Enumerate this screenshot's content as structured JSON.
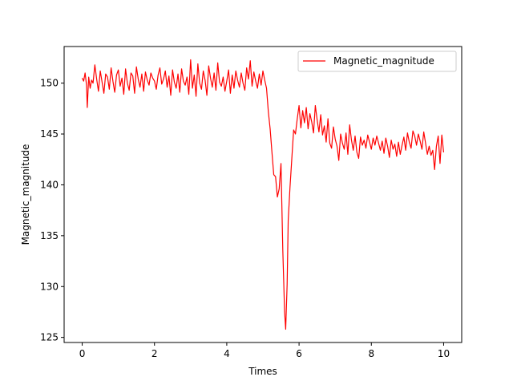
{
  "chart_data": {
    "type": "line",
    "title": "",
    "xlabel": "Times",
    "ylabel": "Magnetic_magnitude",
    "xlim": [
      -0.5,
      10.5
    ],
    "ylim": [
      124.5,
      153.6
    ],
    "xticks": [
      0,
      2,
      4,
      6,
      8,
      10
    ],
    "yticks": [
      125,
      130,
      135,
      140,
      145,
      150
    ],
    "grid": false,
    "legend": {
      "position": "top-right"
    },
    "series": [
      {
        "name": "Magnetic_magnitude",
        "color": "#ff0000",
        "x": [
          0,
          0.04,
          0.08,
          0.12,
          0.14,
          0.18,
          0.22,
          0.26,
          0.3,
          0.35,
          0.4,
          0.45,
          0.5,
          0.55,
          0.6,
          0.65,
          0.7,
          0.75,
          0.8,
          0.85,
          0.9,
          0.95,
          1.0,
          1.05,
          1.1,
          1.15,
          1.2,
          1.25,
          1.3,
          1.35,
          1.4,
          1.45,
          1.5,
          1.55,
          1.6,
          1.65,
          1.7,
          1.75,
          1.8,
          1.85,
          1.9,
          1.95,
          2.0,
          2.05,
          2.1,
          2.15,
          2.2,
          2.25,
          2.3,
          2.35,
          2.4,
          2.45,
          2.5,
          2.55,
          2.6,
          2.65,
          2.7,
          2.75,
          2.8,
          2.85,
          2.9,
          2.95,
          3.0,
          3.05,
          3.1,
          3.15,
          3.2,
          3.25,
          3.3,
          3.35,
          3.4,
          3.45,
          3.5,
          3.55,
          3.6,
          3.65,
          3.7,
          3.75,
          3.8,
          3.85,
          3.9,
          3.95,
          4.0,
          4.05,
          4.1,
          4.15,
          4.2,
          4.25,
          4.3,
          4.35,
          4.4,
          4.45,
          4.5,
          4.55,
          4.6,
          4.65,
          4.7,
          4.75,
          4.8,
          4.85,
          4.9,
          4.95,
          5.0,
          5.05,
          5.1,
          5.15,
          5.2,
          5.25,
          5.3,
          5.35,
          5.4,
          5.45,
          5.5,
          5.55,
          5.6,
          5.63,
          5.67,
          5.7,
          5.75,
          5.8,
          5.85,
          5.9,
          5.95,
          6.0,
          6.05,
          6.1,
          6.15,
          6.2,
          6.25,
          6.3,
          6.35,
          6.4,
          6.45,
          6.5,
          6.55,
          6.6,
          6.65,
          6.7,
          6.75,
          6.8,
          6.85,
          6.9,
          6.95,
          7.0,
          7.05,
          7.1,
          7.15,
          7.2,
          7.25,
          7.3,
          7.35,
          7.4,
          7.45,
          7.5,
          7.55,
          7.6,
          7.65,
          7.7,
          7.75,
          7.8,
          7.85,
          7.9,
          7.95,
          8.0,
          8.05,
          8.1,
          8.15,
          8.2,
          8.25,
          8.3,
          8.35,
          8.4,
          8.45,
          8.5,
          8.55,
          8.6,
          8.65,
          8.7,
          8.75,
          8.8,
          8.85,
          8.9,
          8.95,
          9.0,
          9.05,
          9.1,
          9.15,
          9.2,
          9.25,
          9.3,
          9.35,
          9.4,
          9.45,
          9.5,
          9.55,
          9.6,
          9.65,
          9.7,
          9.75,
          9.8,
          9.85,
          9.9,
          9.95,
          10.0
        ],
        "y": [
          150.5,
          150.2,
          151.0,
          149.8,
          147.6,
          150.6,
          149.5,
          150.3,
          150.0,
          151.8,
          150.4,
          149.2,
          151.2,
          150.1,
          149.0,
          150.9,
          150.6,
          149.4,
          151.5,
          150.2,
          149.1,
          150.8,
          151.3,
          149.7,
          150.5,
          148.9,
          151.4,
          150.0,
          149.3,
          151.0,
          150.7,
          149.0,
          151.6,
          150.4,
          149.6,
          150.9,
          149.2,
          151.1,
          150.3,
          149.8,
          151.0,
          150.5,
          150.2,
          149.4,
          150.8,
          151.5,
          149.9,
          150.4,
          151.2,
          149.6,
          150.7,
          148.8,
          151.3,
          150.1,
          149.5,
          150.9,
          149.1,
          151.4,
          150.2,
          149.8,
          150.6,
          148.9,
          152.3,
          149.5,
          150.8,
          148.7,
          151.9,
          150.0,
          149.4,
          151.2,
          150.3,
          148.8,
          151.7,
          150.5,
          149.6,
          151.0,
          149.3,
          152.0,
          150.1,
          149.7,
          150.6,
          149.2,
          150.2,
          151.3,
          149.0,
          150.8,
          149.5,
          151.2,
          150.3,
          149.6,
          151.0,
          150.0,
          149.3,
          151.5,
          150.4,
          152.2,
          149.7,
          151.1,
          150.2,
          149.5,
          150.9,
          149.8,
          151.2,
          150.3,
          149.5,
          147.2,
          145.5,
          143.2,
          141.0,
          140.8,
          138.8,
          139.6,
          142.1,
          133.6,
          127.5,
          125.8,
          130.2,
          136.5,
          139.8,
          142.6,
          145.4,
          145.0,
          146.5,
          147.8,
          145.6,
          147.3,
          146.1,
          147.6,
          145.5,
          147.0,
          146.2,
          145.1,
          147.8,
          146.4,
          145.2,
          146.9,
          144.9,
          145.8,
          144.2,
          146.5,
          144.1,
          143.6,
          145.7,
          144.5,
          143.8,
          142.4,
          145.0,
          144.1,
          143.5,
          145.1,
          143.0,
          145.9,
          144.4,
          143.4,
          144.8,
          143.2,
          142.6,
          144.7,
          143.9,
          144.4,
          143.6,
          144.9,
          144.2,
          143.5,
          144.6,
          143.9,
          144.8,
          144.1,
          143.4,
          144.3,
          143.1,
          144.6,
          143.8,
          142.7,
          144.4,
          143.5,
          144.0,
          142.8,
          144.2,
          143.0,
          143.9,
          144.7,
          143.4,
          145.1,
          144.2,
          143.6,
          145.3,
          144.8,
          143.9,
          145.0,
          144.3,
          143.5,
          145.2,
          144.1,
          143.0,
          143.8,
          142.9,
          143.4,
          141.5,
          143.8,
          144.8,
          142.1,
          144.9,
          143.2
        ]
      }
    ]
  }
}
